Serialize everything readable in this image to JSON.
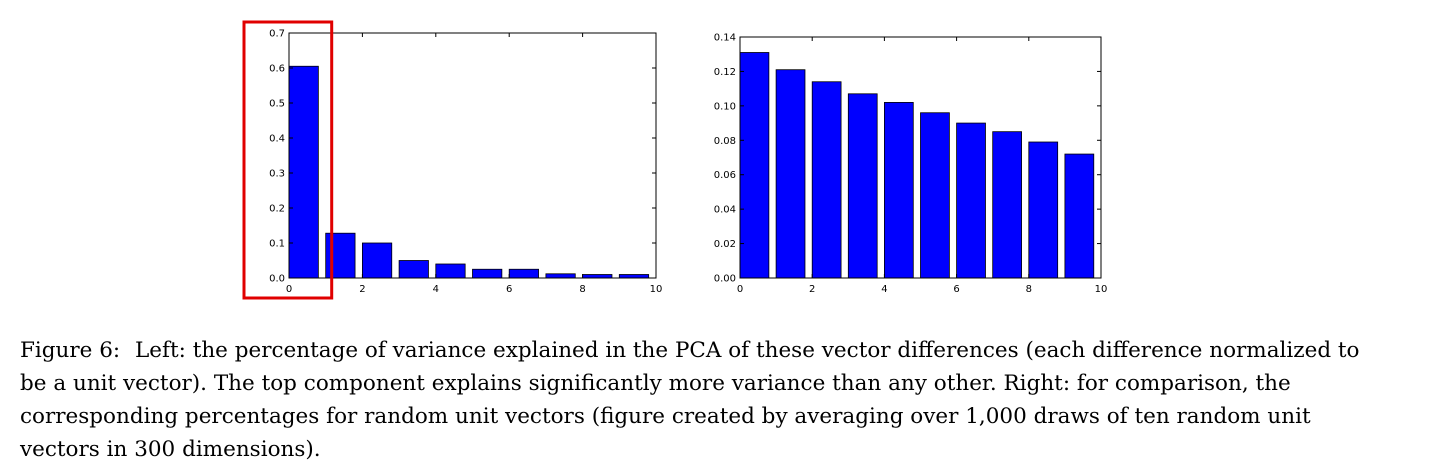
{
  "chart_data": [
    {
      "type": "bar",
      "title": "",
      "xlabel": "",
      "ylabel": "",
      "x": [
        0,
        1,
        2,
        3,
        4,
        5,
        6,
        7,
        8,
        9
      ],
      "values": [
        0.605,
        0.128,
        0.1,
        0.05,
        0.04,
        0.025,
        0.025,
        0.012,
        0.01,
        0.01
      ],
      "xlim": [
        0,
        10
      ],
      "ylim": [
        0,
        0.7
      ],
      "xticks": [
        "0",
        "2",
        "4",
        "6",
        "8",
        "10"
      ],
      "yticks": [
        "0.0",
        "0.1",
        "0.2",
        "0.3",
        "0.4",
        "0.5",
        "0.6",
        "0.7"
      ],
      "grid": false,
      "bar_color": "#0000ff",
      "highlight": {
        "from": 0,
        "to": 1,
        "color": "#e00000"
      }
    },
    {
      "type": "bar",
      "title": "",
      "xlabel": "",
      "ylabel": "",
      "x": [
        0,
        1,
        2,
        3,
        4,
        5,
        6,
        7,
        8,
        9
      ],
      "values": [
        0.131,
        0.121,
        0.114,
        0.107,
        0.102,
        0.096,
        0.09,
        0.085,
        0.079,
        0.072
      ],
      "xlim": [
        0,
        10
      ],
      "ylim": [
        0,
        0.14
      ],
      "xticks": [
        "0",
        "2",
        "4",
        "6",
        "8",
        "10"
      ],
      "yticks": [
        "0.00",
        "0.02",
        "0.04",
        "0.06",
        "0.08",
        "0.10",
        "0.12",
        "0.14"
      ],
      "grid": false,
      "bar_color": "#0000ff"
    }
  ],
  "caption": {
    "label": "Figure 6:",
    "text": "Left: the percentage of variance explained in the PCA of these vector differences (each difference normalized to be a unit vector). The top component explains significantly more variance than any other. Right: for comparison, the corresponding percentages for random unit vectors (figure created by averaging over 1,000 draws of ten random unit vectors in 300 dimensions)."
  }
}
